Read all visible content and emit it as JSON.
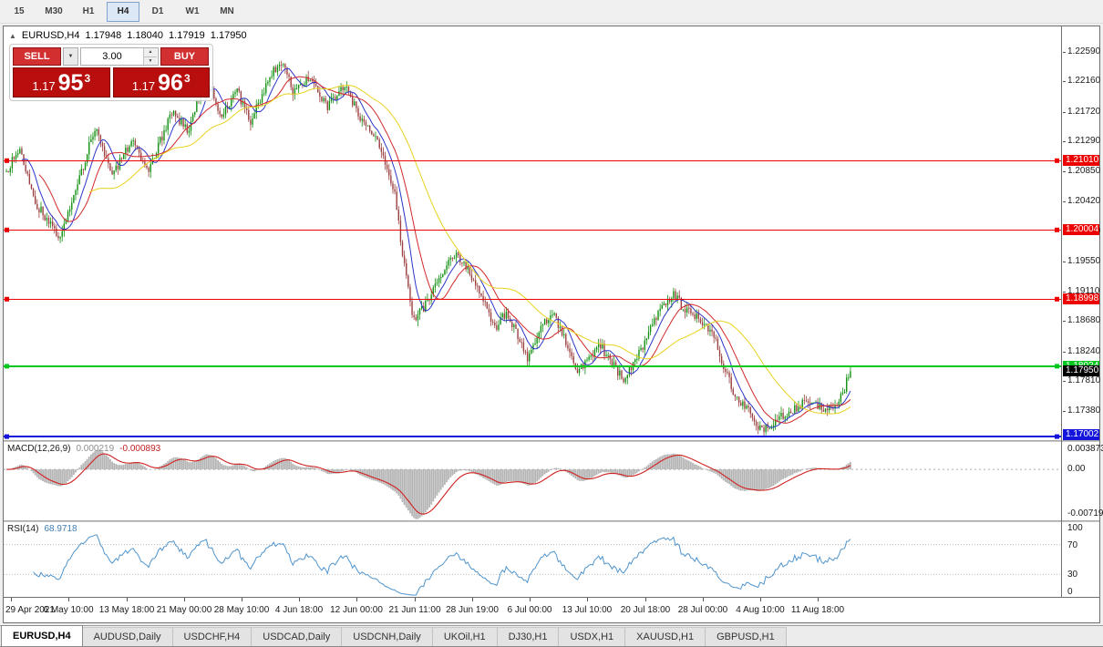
{
  "toolbar": {
    "timeframes": [
      "15",
      "M30",
      "H1",
      "H4",
      "D1",
      "W1",
      "MN"
    ],
    "active": "H4"
  },
  "chart_header": {
    "collapse_icon": "▲",
    "symbol_tf": "EURUSD,H4",
    "open": "1.17948",
    "high": "1.18040",
    "low": "1.17919",
    "close": "1.17950"
  },
  "one_click": {
    "sell_label": "SELL",
    "buy_label": "BUY",
    "volume": "3.00",
    "dropdown_icon": "▼",
    "spin_up_icon": "▲",
    "spin_down_icon": "▼",
    "button_color": "#d23030",
    "tile_color": "#b90e0e",
    "sell_price": {
      "small": "1.17",
      "big": "95",
      "sup": "3"
    },
    "buy_price": {
      "small": "1.17",
      "big": "96",
      "sup": "3"
    }
  },
  "macd_panel": {
    "name": "MACD(12,26,9)",
    "value1": "0.000219",
    "value2": "-0.000893",
    "scale": [
      "0.003873",
      "0.00",
      "-0.007191"
    ]
  },
  "rsi_panel": {
    "name": "RSI(14)",
    "value": "68.9718",
    "scale": [
      "100",
      "70",
      "30",
      "0"
    ]
  },
  "tabs": [
    {
      "label": "EURUSD,H4",
      "active": true
    },
    {
      "label": "AUDUSD,Daily",
      "active": false
    },
    {
      "label": "USDCHF,H4",
      "active": false
    },
    {
      "label": "USDCAD,Daily",
      "active": false
    },
    {
      "label": "USDCNH,Daily",
      "active": false
    },
    {
      "label": "UKOil,H1",
      "active": false
    },
    {
      "label": "DJ30,H1",
      "active": false
    },
    {
      "label": "USDX,H1",
      "active": false
    },
    {
      "label": "XAUUSD,H1",
      "active": false
    },
    {
      "label": "GBPUSD,H1",
      "active": false
    }
  ],
  "chart_data": {
    "type": "candlestick",
    "symbol": "EURUSD",
    "timeframe": "H4",
    "bars": 440,
    "seed": 13,
    "noise": 0.0014,
    "wick": 0.0009,
    "candle_region_frac": 0.8,
    "y_range": {
      "top": 1.2296,
      "bottom": 1.1695
    },
    "up_color": "#129112",
    "down_color": "#9c4040",
    "price_path": [
      [
        0.0,
        1.2085
      ],
      [
        0.015,
        1.212
      ],
      [
        0.035,
        1.2038
      ],
      [
        0.062,
        1.199
      ],
      [
        0.085,
        1.2068
      ],
      [
        0.105,
        1.215
      ],
      [
        0.125,
        1.2078
      ],
      [
        0.148,
        1.2128
      ],
      [
        0.17,
        1.2088
      ],
      [
        0.195,
        1.2172
      ],
      [
        0.215,
        1.2145
      ],
      [
        0.235,
        1.2222
      ],
      [
        0.255,
        1.2165
      ],
      [
        0.272,
        1.2205
      ],
      [
        0.29,
        1.2158
      ],
      [
        0.31,
        1.2218
      ],
      [
        0.325,
        1.2248
      ],
      [
        0.34,
        1.22
      ],
      [
        0.36,
        1.2224
      ],
      [
        0.38,
        1.2178
      ],
      [
        0.4,
        1.221
      ],
      [
        0.42,
        1.2162
      ],
      [
        0.445,
        1.2118
      ],
      [
        0.46,
        1.2052
      ],
      [
        0.47,
        1.1962
      ],
      [
        0.482,
        1.1868
      ],
      [
        0.495,
        1.1888
      ],
      [
        0.515,
        1.1932
      ],
      [
        0.532,
        1.1968
      ],
      [
        0.55,
        1.1936
      ],
      [
        0.565,
        1.1896
      ],
      [
        0.578,
        1.1856
      ],
      [
        0.592,
        1.1882
      ],
      [
        0.605,
        1.1846
      ],
      [
        0.618,
        1.1814
      ],
      [
        0.633,
        1.1862
      ],
      [
        0.648,
        1.1878
      ],
      [
        0.662,
        1.1842
      ],
      [
        0.676,
        1.1794
      ],
      [
        0.69,
        1.181
      ],
      [
        0.703,
        1.1834
      ],
      [
        0.717,
        1.1808
      ],
      [
        0.73,
        1.1784
      ],
      [
        0.745,
        1.1812
      ],
      [
        0.76,
        1.1846
      ],
      [
        0.775,
        1.189
      ],
      [
        0.79,
        1.1906
      ],
      [
        0.805,
        1.1884
      ],
      [
        0.82,
        1.1872
      ],
      [
        0.835,
        1.1854
      ],
      [
        0.85,
        1.1804
      ],
      [
        0.865,
        1.1754
      ],
      [
        0.88,
        1.1738
      ],
      [
        0.895,
        1.1708
      ],
      [
        0.91,
        1.1722
      ],
      [
        0.925,
        1.1734
      ],
      [
        0.945,
        1.1748
      ],
      [
        0.965,
        1.1742
      ],
      [
        0.985,
        1.1744
      ],
      [
        1.0,
        1.1795
      ]
    ],
    "moving_averages": [
      {
        "window": 9,
        "color": "#2b35c8"
      },
      {
        "window": 18,
        "color": "#d22828"
      },
      {
        "window": 44,
        "color": "#e8d21e"
      }
    ],
    "h_lines": [
      {
        "price": 1.2101,
        "label": "1.21010",
        "color": "#ee0000",
        "width": 1
      },
      {
        "price": 1.20004,
        "label": "1.20004",
        "color": "#ee0000",
        "width": 1
      },
      {
        "price": 1.18998,
        "label": "1.18998",
        "color": "#ee0000",
        "width": 1
      },
      {
        "price": 1.18024,
        "label": "1.18024",
        "color": "#00c81e",
        "width": 2
      },
      {
        "price": 1.17002,
        "label": "1.17002",
        "color": "#1414dd",
        "width": 2
      }
    ],
    "current_price": {
      "price": 1.1795,
      "label": "1.17950",
      "bg": "#000000"
    },
    "y_ticks": [
      "1.22590",
      "1.22160",
      "1.21720",
      "1.21290",
      "1.20850",
      "1.20420",
      "1.19980",
      "1.19550",
      "1.19110",
      "1.18680",
      "1.18240",
      "1.17810",
      "1.17380"
    ],
    "x_ticks": [
      "29 Apr 2021",
      "6 May 10:00",
      "13 May 18:00",
      "21 May 00:00",
      "28 May 10:00",
      "4 Jun 18:00",
      "12 Jun 00:00",
      "21 Jun 11:00",
      "28 Jun 19:00",
      "6 Jul 00:00",
      "13 Jul 10:00",
      "20 Jul 18:00",
      "28 Jul 00:00",
      "4 Aug 10:00",
      "11 Aug 18:00"
    ],
    "x_tick_start_frac": 0.007,
    "x_tick_step_frac": 0.0545,
    "macd": {
      "fast": 12,
      "slow": 26,
      "signal": 9,
      "range": {
        "max": 0.003873,
        "min": -0.007191
      },
      "hist_color": "#b4b4b4",
      "signal_color": "#d02020"
    },
    "rsi": {
      "period": 14,
      "levels": [
        70,
        30
      ],
      "range": [
        0,
        100
      ],
      "color": "#4f94cd",
      "level_color": "#bcbcbc"
    }
  }
}
